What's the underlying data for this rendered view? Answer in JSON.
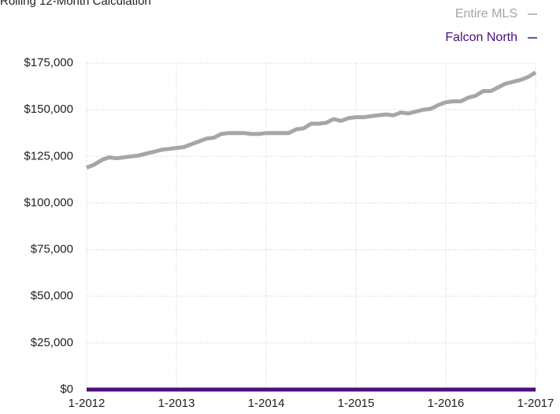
{
  "chart_data": {
    "type": "line",
    "title": "Rolling 12-Month Calculation",
    "categories": [
      "1-2012",
      null,
      null,
      null,
      null,
      null,
      null,
      null,
      null,
      null,
      null,
      null,
      "1-2013",
      null,
      null,
      null,
      null,
      null,
      null,
      null,
      null,
      null,
      null,
      null,
      "1-2014",
      null,
      null,
      null,
      null,
      null,
      null,
      null,
      null,
      null,
      null,
      null,
      "1-2015",
      null,
      null,
      null,
      null,
      null,
      null,
      null,
      null,
      null,
      null,
      null,
      "1-2016",
      null,
      null,
      null,
      null,
      null,
      null,
      null,
      null,
      null,
      null,
      null,
      "1-2017"
    ],
    "series": [
      {
        "name": "Entire MLS",
        "color": "#a6a6a6",
        "values": [
          119000,
          120500,
          123000,
          124500,
          124000,
          124500,
          125000,
          125500,
          126500,
          127500,
          128500,
          129000,
          129500,
          130000,
          131500,
          133000,
          134500,
          135000,
          137000,
          137500,
          137500,
          137500,
          137000,
          137000,
          137500,
          137500,
          137500,
          137500,
          139500,
          140000,
          142500,
          142500,
          143000,
          145000,
          144000,
          145500,
          146000,
          146000,
          146500,
          147000,
          147500,
          147000,
          148500,
          148000,
          149000,
          150000,
          150500,
          152500,
          154000,
          154500,
          154500,
          156500,
          157500,
          160000,
          160000,
          162000,
          164000,
          165000,
          166000,
          167500,
          170000
        ]
      },
      {
        "name": "Falcon North",
        "color": "#4b0f7a",
        "values": [
          0,
          0,
          0,
          0,
          0,
          0,
          0,
          0,
          0,
          0,
          0,
          0,
          0,
          0,
          0,
          0,
          0,
          0,
          0,
          0,
          0,
          0,
          0,
          0,
          0,
          0,
          0,
          0,
          0,
          0,
          0,
          0,
          0,
          0,
          0,
          0,
          0,
          0,
          0,
          0,
          0,
          0,
          0,
          0,
          0,
          0,
          0,
          0,
          0,
          0,
          0,
          0,
          0,
          0,
          0,
          0,
          0,
          0,
          0,
          0,
          0
        ]
      }
    ],
    "ylim": [
      0,
      175000
    ],
    "yticks": [
      {
        "value": 0,
        "label": "$0"
      },
      {
        "value": 25000,
        "label": "$25,000"
      },
      {
        "value": 50000,
        "label": "$50,000"
      },
      {
        "value": 75000,
        "label": "$75,000"
      },
      {
        "value": 100000,
        "label": "$100,000"
      },
      {
        "value": 125000,
        "label": "$125,000"
      },
      {
        "value": 150000,
        "label": "$150,000"
      },
      {
        "value": 175000,
        "label": "$175,000"
      }
    ],
    "grid": true
  }
}
